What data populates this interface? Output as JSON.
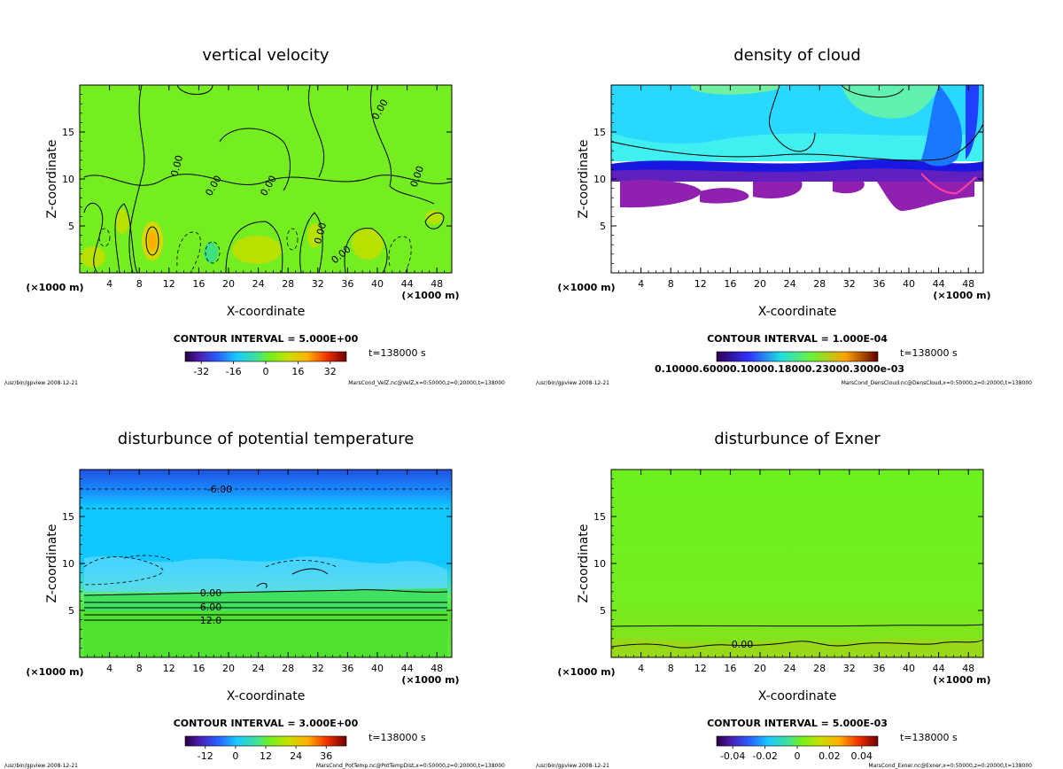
{
  "chart_data": [
    {
      "type": "heatmap",
      "id": "velz",
      "title": "vertical velocity",
      "xlabel": "X-coordinate",
      "ylabel": "Z-coordinate",
      "x_unit": "(×1000 m)",
      "xticks": [
        4,
        8,
        12,
        16,
        20,
        24,
        28,
        32,
        36,
        40,
        44,
        48
      ],
      "yticks": [
        5,
        10,
        15
      ],
      "xlim": [
        0,
        50
      ],
      "ylim": [
        0,
        20
      ],
      "contour_interval": "CONTOUR INTERVAL = 5.000E+00",
      "contour_labels": [
        "0.00",
        "0.00",
        "0.00",
        "0.00",
        "0.00",
        "0.00",
        "0.00"
      ],
      "colorbar_ticks": [
        "-32",
        "-16",
        "0",
        "16",
        "32"
      ],
      "colorbar_range": [
        -40,
        40
      ],
      "time_label": "t=138000 s",
      "footer_left": "/usr/bin/gpview  2008-12-21",
      "footer_right": "MarsCond_VelZ.nc@VelZ,x=0:50000,z=0:20000,t=138000"
    },
    {
      "type": "heatmap",
      "id": "denscloud",
      "title": "density of cloud",
      "xlabel": "X-coordinate",
      "ylabel": "Z-coordinate",
      "x_unit": "(×1000 m)",
      "xticks": [
        4,
        8,
        12,
        16,
        20,
        24,
        28,
        32,
        36,
        40,
        44,
        48
      ],
      "yticks": [
        5,
        10,
        15
      ],
      "xlim": [
        0,
        50
      ],
      "ylim": [
        0,
        20
      ],
      "contour_interval": "CONTOUR INTERVAL = 1.000E-04",
      "colorbar_ticks_text": "0.10000.60000.10000.18000.23000.3000e-03",
      "time_label": "t=138000 s",
      "footer_left": "/usr/bin/gpview  2008-12-21",
      "footer_right": "MarsCond_DensCloud.nc@DensCloud,x=0:50000,z=0:20000,t=138000"
    },
    {
      "type": "heatmap",
      "id": "pottemp",
      "title": "disturbunce of potential temperature",
      "xlabel": "X-coordinate",
      "ylabel": "Z-coordinate",
      "x_unit": "(×1000 m)",
      "xticks": [
        4,
        8,
        12,
        16,
        20,
        24,
        28,
        32,
        36,
        40,
        44,
        48
      ],
      "yticks": [
        5,
        10,
        15
      ],
      "xlim": [
        0,
        50
      ],
      "ylim": [
        0,
        20
      ],
      "contour_interval": "CONTOUR INTERVAL = 3.000E+00",
      "contour_labels": [
        "-6.00",
        "0.00",
        "6.00",
        "12.0"
      ],
      "colorbar_ticks": [
        "-12",
        "0",
        "12",
        "24",
        "36"
      ],
      "colorbar_range": [
        -20,
        44
      ],
      "time_label": "t=138000 s",
      "footer_left": "/usr/bin/gpview  2008-12-21",
      "footer_right": "MarsCond_PotTemp.nc@PotTempDist,x=0:50000,z=0:20000,t=138000"
    },
    {
      "type": "heatmap",
      "id": "exner",
      "title": "disturbunce of Exner",
      "xlabel": "X-coordinate",
      "ylabel": "Z-coordinate",
      "x_unit": "(×1000 m)",
      "xticks": [
        4,
        8,
        12,
        16,
        20,
        24,
        28,
        32,
        36,
        40,
        44,
        48
      ],
      "yticks": [
        5,
        10,
        15
      ],
      "xlim": [
        0,
        50
      ],
      "ylim": [
        0,
        20
      ],
      "contour_interval": "CONTOUR INTERVAL = 5.000E-03",
      "contour_labels": [
        "0.00"
      ],
      "colorbar_ticks": [
        "-0.04",
        "-0.02",
        "0",
        "0.02",
        "0.04"
      ],
      "colorbar_range": [
        -0.05,
        0.05
      ],
      "time_label": "t=138000 s",
      "footer_left": "/usr/bin/gpview  2008-12-21",
      "footer_right": "MarsCond_Exner.nc@Exner,x=0:50000,z=0:20000,t=138000"
    }
  ]
}
